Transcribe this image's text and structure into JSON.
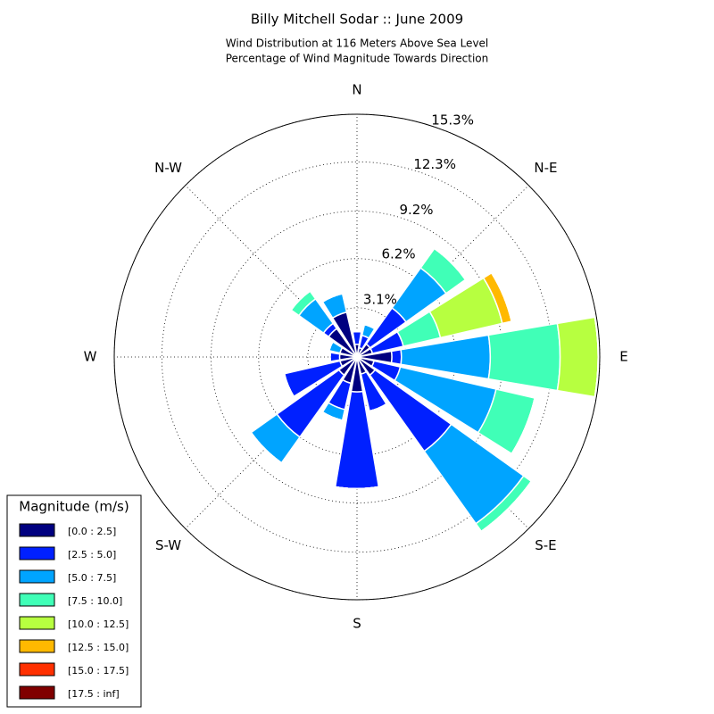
{
  "chart_data": {
    "type": "windrose",
    "title": "Billy Mitchell Sodar :: June 2009",
    "subtitle": [
      "Wind Distribution at 116 Meters Above Sea Level",
      "Percentage of Wind Magnitude Towards Direction"
    ],
    "x": [
      0,
      22.5,
      45,
      67.5,
      90,
      112.5,
      135,
      157.5,
      180,
      202.5,
      225,
      247.5,
      270,
      292.5,
      315,
      337.5
    ],
    "xticks": [
      {
        "value": 0,
        "label": "N"
      },
      {
        "value": 45,
        "label": "N-E"
      },
      {
        "value": 90,
        "label": "E"
      },
      {
        "value": 135,
        "label": "S-E"
      },
      {
        "value": 180,
        "label": "S"
      },
      {
        "value": 225,
        "label": "S-W"
      },
      {
        "value": 270,
        "label": "W"
      },
      {
        "value": 315,
        "label": "N-W"
      }
    ],
    "ylim": [
      0,
      15.3
    ],
    "yticks": [
      {
        "value": 3.1,
        "label": "3.1%"
      },
      {
        "value": 6.2,
        "label": "6.2%"
      },
      {
        "value": 9.2,
        "label": "9.2%"
      },
      {
        "value": 12.3,
        "label": "12.3%"
      },
      {
        "value": 15.3,
        "label": "15.3%"
      }
    ],
    "grid": true,
    "legend_title": "Magnitude (m/s)",
    "legend_position": "lower left",
    "series": [
      {
        "name": "[0.0 : 2.5]",
        "color": "#000080",
        "values": [
          0.8,
          0.6,
          1.0,
          1.0,
          2.2,
          1.1,
          1.4,
          1.1,
          2.2,
          1.7,
          1.4,
          1.1,
          1.1,
          1.1,
          2.2,
          2.9
        ]
      },
      {
        "name": "[2.5 : 5.0]",
        "color": "#0020ff",
        "values": [
          0.8,
          0.8,
          2.8,
          2.0,
          0.6,
          1.7,
          5.9,
          2.4,
          6.1,
          1.7,
          4.8,
          3.6,
          0.6,
          0,
          0.4,
          0
        ]
      },
      {
        "name": "[5.0 : 7.5]",
        "color": "#00a4ff",
        "values": [
          0,
          0.7,
          3.1,
          0,
          5.6,
          6.2,
          5.6,
          0,
          0,
          0.7,
          2.0,
          0,
          0,
          0.7,
          1.9,
          1.2
        ]
      },
      {
        "name": "[7.5 : 10.0]",
        "color": "#40ffb7",
        "values": [
          0,
          0,
          1.5,
          2.4,
          4.4,
          2.5,
          0.6,
          0,
          0,
          0,
          0,
          0,
          0,
          0,
          0.6,
          0
        ]
      },
      {
        "name": "[10.0 : 12.5]",
        "color": "#b7ff40",
        "values": [
          0,
          0,
          0,
          4.0,
          2.4,
          0,
          0,
          0,
          0,
          0,
          0,
          0,
          0,
          0,
          0,
          0
        ]
      },
      {
        "name": "[12.5 : 15.0]",
        "color": "#ffb900",
        "values": [
          0,
          0,
          0,
          0.6,
          0,
          0,
          0,
          0,
          0,
          0,
          0,
          0,
          0,
          0,
          0,
          0
        ]
      },
      {
        "name": "[15.0 : 17.5]",
        "color": "#ff3000",
        "values": [
          0,
          0,
          0,
          0,
          0,
          0,
          0,
          0,
          0,
          0,
          0,
          0,
          0,
          0,
          0,
          0
        ]
      },
      {
        "name": "[17.5 : inf]",
        "color": "#800000",
        "values": [
          0,
          0,
          0,
          0,
          0,
          0,
          0,
          0,
          0,
          0,
          0,
          0,
          0,
          0,
          0,
          0
        ]
      }
    ]
  }
}
